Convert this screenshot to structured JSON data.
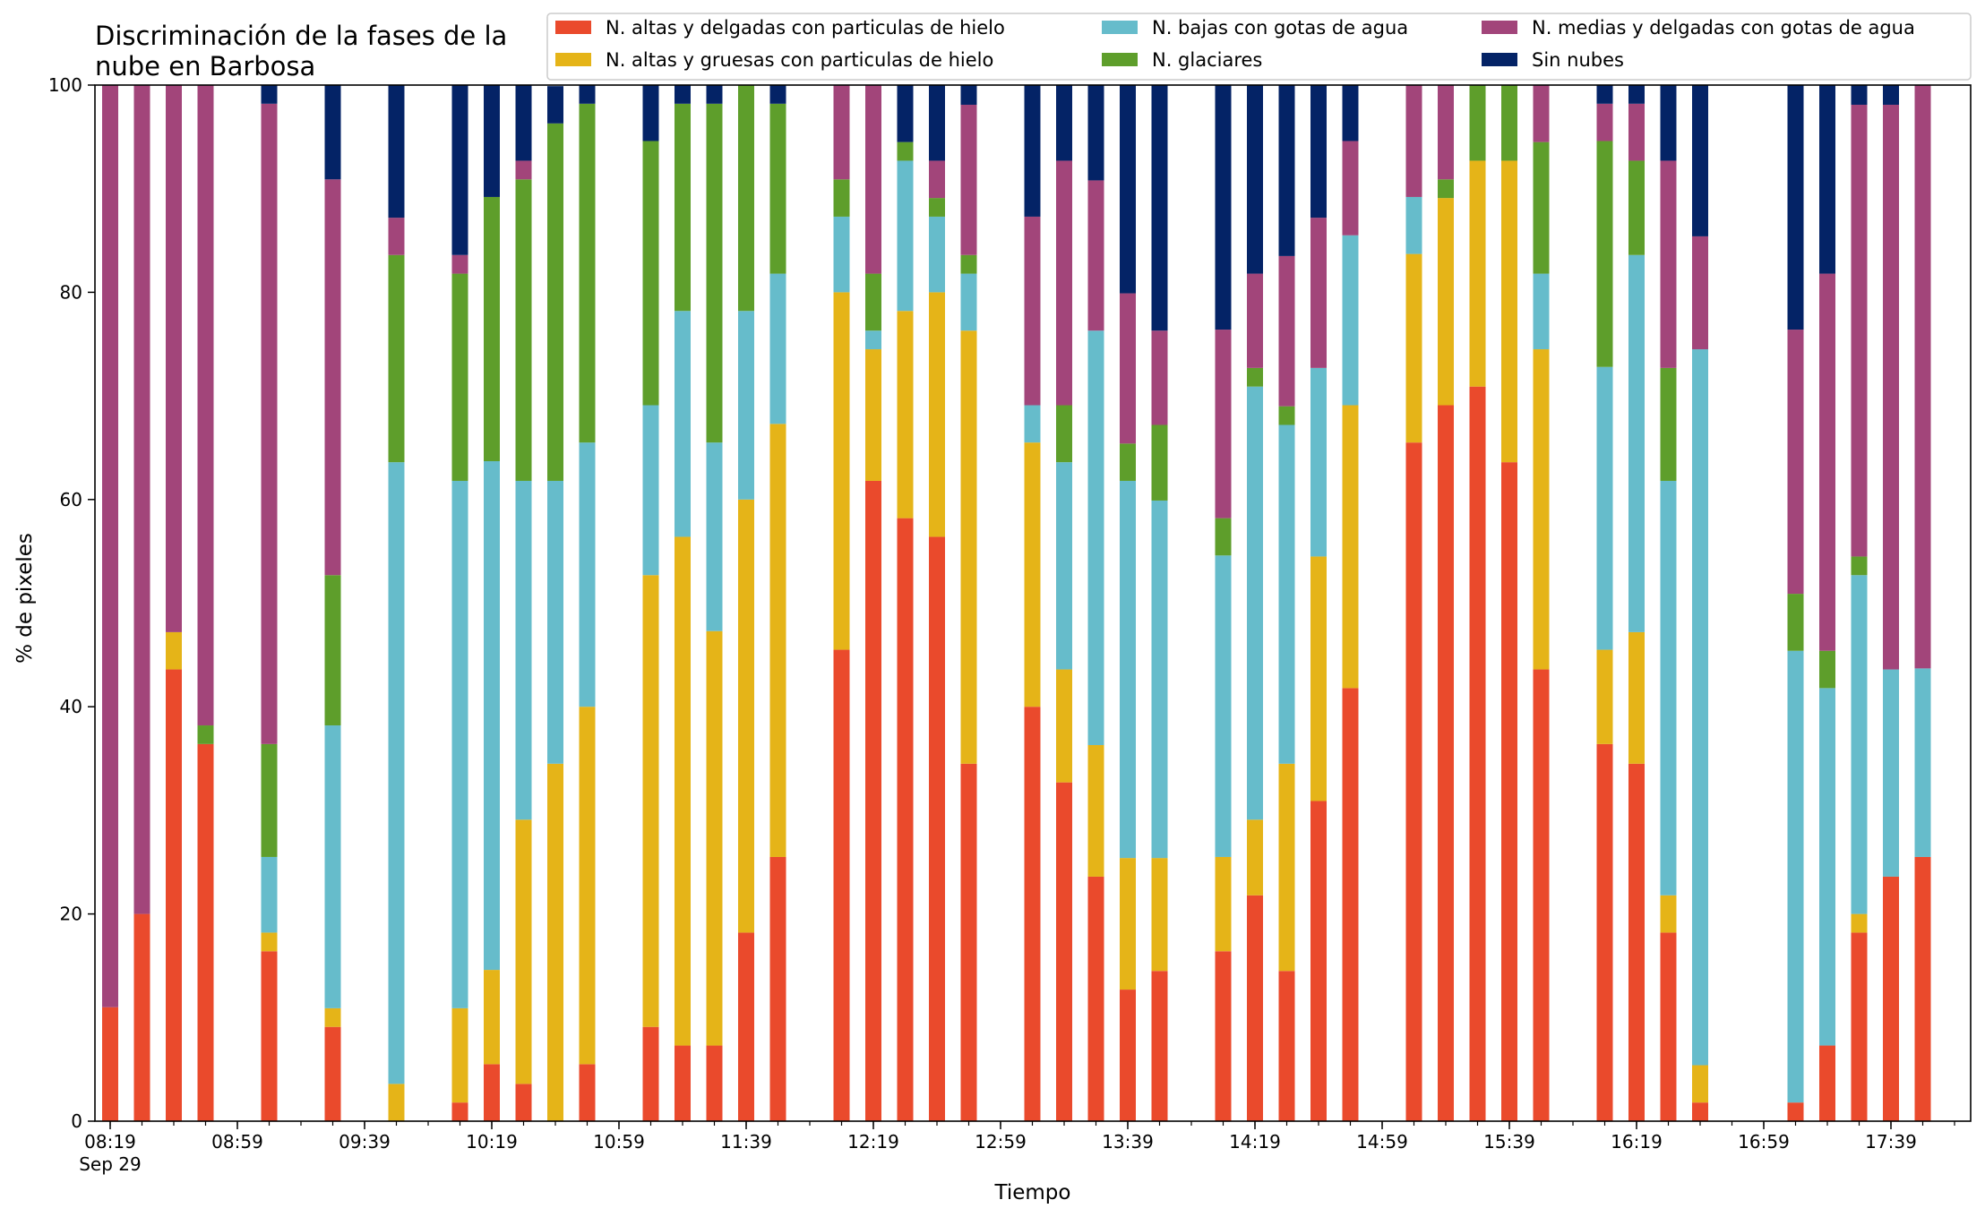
{
  "chart_data": {
    "type": "bar",
    "stacked": true,
    "title_lines": [
      "Discriminación de la fases de la",
      "nube en Barbosa"
    ],
    "xlabel": "Tiempo",
    "ylabel": "% de pixeles",
    "ylim": [
      0,
      100
    ],
    "yticks": [
      "0",
      "20",
      "40",
      "60",
      "80",
      "100"
    ],
    "xtick_labels": [
      "08:19",
      "08:59",
      "09:39",
      "10:19",
      "10:59",
      "11:39",
      "12:19",
      "12:59",
      "13:39",
      "14:19",
      "14:59",
      "15:39",
      "16:19",
      "16:59",
      "17:39"
    ],
    "date_label": "Sep 29",
    "legend_position": "top-right",
    "grid": false,
    "time_start": "08:19",
    "time_step_minutes": 10,
    "series": [
      {
        "name": "N. altas y delgadas con particulas de hielo",
        "color": "#ea4a2c"
      },
      {
        "name": "N. altas y gruesas con particulas de hielo",
        "color": "#e5b418"
      },
      {
        "name": "N. bajas con gotas de agua",
        "color": "#66bccb"
      },
      {
        "name": "N. glaciares",
        "color": "#5e9e2b"
      },
      {
        "name": "N. medias y delgadas con gotas de agua",
        "color": "#a2457a"
      },
      {
        "name": "Sin nubes",
        "color": "#042366"
      }
    ],
    "legend_order": [
      0,
      1,
      2,
      3,
      4,
      5
    ],
    "bars": [
      {
        "time": "08:19",
        "values": [
          11,
          0,
          0,
          0,
          89,
          0
        ]
      },
      {
        "time": "08:29",
        "values": [
          20,
          0,
          0,
          0,
          80,
          0
        ]
      },
      {
        "time": "08:39",
        "values": [
          43.6,
          3.6,
          0,
          0,
          52.8,
          0
        ]
      },
      {
        "time": "08:49",
        "values": [
          36.4,
          0,
          0,
          1.8,
          61.8,
          0
        ]
      },
      {
        "time": "09:09",
        "values": [
          16.4,
          1.8,
          7.3,
          10.9,
          61.8,
          1.8
        ]
      },
      {
        "time": "09:29",
        "values": [
          9.1,
          1.8,
          27.3,
          14.5,
          38.2,
          9.1
        ]
      },
      {
        "time": "09:49",
        "values": [
          0,
          3.6,
          60,
          20,
          3.6,
          12.8
        ]
      },
      {
        "time": "10:09",
        "values": [
          1.8,
          9.1,
          50.9,
          20,
          1.8,
          16.4
        ]
      },
      {
        "time": "10:19",
        "values": [
          5.5,
          9.1,
          49.1,
          25.5,
          0,
          10.8
        ]
      },
      {
        "time": "10:29",
        "values": [
          3.6,
          25.5,
          32.7,
          29.1,
          1.8,
          7.3
        ]
      },
      {
        "time": "10:39",
        "values": [
          0,
          34.5,
          27.3,
          34.5,
          0,
          3.6
        ]
      },
      {
        "time": "10:49",
        "values": [
          5.5,
          34.5,
          25.5,
          32.7,
          0,
          1.8
        ]
      },
      {
        "time": "11:09",
        "values": [
          9.1,
          43.6,
          16.4,
          25.5,
          0,
          5.4
        ]
      },
      {
        "time": "11:19",
        "values": [
          7.3,
          49.1,
          21.8,
          20,
          0,
          1.8
        ]
      },
      {
        "time": "11:29",
        "values": [
          7.3,
          40,
          18.2,
          32.7,
          0,
          1.8
        ]
      },
      {
        "time": "11:39",
        "values": [
          18.2,
          41.8,
          18.2,
          21.8,
          0,
          0
        ]
      },
      {
        "time": "11:49",
        "values": [
          25.5,
          41.8,
          14.5,
          16.4,
          0,
          1.8
        ]
      },
      {
        "time": "12:09",
        "values": [
          45.5,
          34.5,
          7.3,
          3.6,
          9.1,
          0
        ]
      },
      {
        "time": "12:19",
        "values": [
          61.8,
          12.7,
          1.8,
          5.5,
          18.2,
          0
        ]
      },
      {
        "time": "12:29",
        "values": [
          58.2,
          20,
          14.5,
          1.8,
          0,
          5.5
        ]
      },
      {
        "time": "12:39",
        "values": [
          56.4,
          23.6,
          7.3,
          1.8,
          3.6,
          7.3
        ]
      },
      {
        "time": "12:49",
        "values": [
          34.5,
          41.8,
          5.5,
          1.8,
          14.5,
          1.9
        ]
      },
      {
        "time": "13:09",
        "values": [
          40,
          25.5,
          3.6,
          0,
          18.2,
          12.7
        ]
      },
      {
        "time": "13:19",
        "values": [
          32.7,
          10.9,
          20,
          5.5,
          23.6,
          7.3
        ]
      },
      {
        "time": "13:29",
        "values": [
          23.6,
          12.7,
          40,
          0,
          14.5,
          9.2
        ]
      },
      {
        "time": "13:39",
        "values": [
          12.7,
          12.7,
          36.4,
          3.6,
          14.5,
          20.1
        ]
      },
      {
        "time": "13:49",
        "values": [
          14.5,
          10.9,
          34.5,
          7.3,
          9.1,
          23.7
        ]
      },
      {
        "time": "14:09",
        "values": [
          16.4,
          9.1,
          29.1,
          3.6,
          18.2,
          23.6
        ]
      },
      {
        "time": "14:19",
        "values": [
          21.8,
          7.3,
          41.8,
          1.8,
          9.1,
          18.2
        ]
      },
      {
        "time": "14:29",
        "values": [
          14.5,
          20,
          32.7,
          1.8,
          14.5,
          16.5
        ]
      },
      {
        "time": "14:39",
        "values": [
          30.9,
          23.6,
          18.2,
          0,
          14.5,
          12.8
        ]
      },
      {
        "time": "14:49",
        "values": [
          41.8,
          27.3,
          16.4,
          0,
          9.1,
          5.4
        ]
      },
      {
        "time": "15:09",
        "values": [
          65.5,
          18.2,
          5.5,
          0,
          10.8,
          0
        ]
      },
      {
        "time": "15:19",
        "values": [
          69.1,
          20,
          0,
          1.8,
          9.1,
          0
        ]
      },
      {
        "time": "15:29",
        "values": [
          70.9,
          21.8,
          0,
          7.3,
          0,
          0
        ]
      },
      {
        "time": "15:39",
        "values": [
          63.6,
          29.1,
          0,
          7.3,
          0,
          0
        ]
      },
      {
        "time": "15:49",
        "values": [
          43.6,
          30.9,
          7.3,
          12.7,
          5.5,
          0
        ]
      },
      {
        "time": "16:09",
        "values": [
          36.4,
          9.1,
          27.3,
          21.8,
          3.6,
          1.8
        ]
      },
      {
        "time": "16:19",
        "values": [
          34.5,
          12.7,
          36.4,
          9.1,
          5.5,
          1.8
        ]
      },
      {
        "time": "16:29",
        "values": [
          18.2,
          3.6,
          40,
          10.9,
          20,
          7.3
        ]
      },
      {
        "time": "16:39",
        "values": [
          1.8,
          3.6,
          69.1,
          0,
          10.9,
          14.6
        ]
      },
      {
        "time": "17:09",
        "values": [
          1.8,
          0,
          43.6,
          5.5,
          25.5,
          23.6
        ]
      },
      {
        "time": "17:19",
        "values": [
          7.3,
          0,
          34.5,
          3.6,
          36.4,
          18.2
        ]
      },
      {
        "time": "17:29",
        "values": [
          18.2,
          1.8,
          32.7,
          1.8,
          43.6,
          1.9
        ]
      },
      {
        "time": "17:39",
        "values": [
          23.6,
          0,
          20,
          0,
          54.5,
          1.9
        ]
      },
      {
        "time": "17:49",
        "values": [
          25.5,
          0,
          18.2,
          0,
          56.3,
          0
        ]
      }
    ]
  }
}
